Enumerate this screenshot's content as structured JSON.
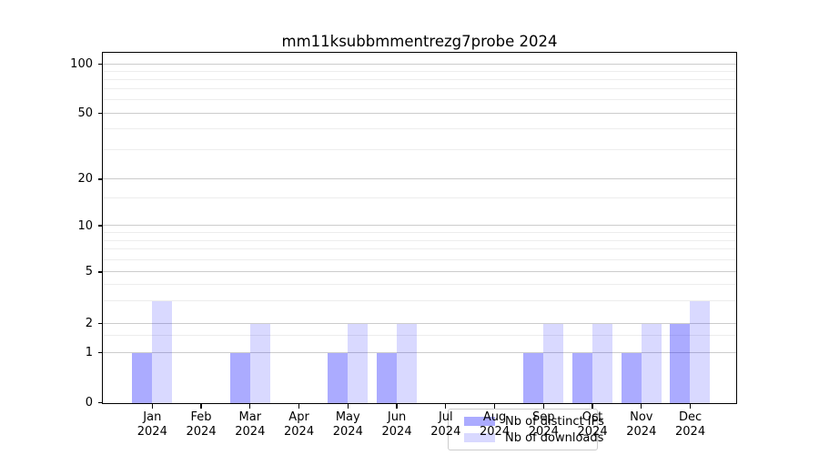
{
  "title": "mm11ksubbmmentrezg7probe 2024",
  "chart_data": {
    "type": "bar",
    "title": "mm11ksubbmmentrezg7probe 2024",
    "categories": [
      "Jan",
      "Feb",
      "Mar",
      "Apr",
      "May",
      "Jun",
      "Jul",
      "Aug",
      "Sep",
      "Oct",
      "Nov",
      "Dec"
    ],
    "category_year": "2024",
    "series": [
      {
        "name": "Nb of distinct IPs",
        "color": "rgba(0,0,255,0.33)",
        "values": [
          1,
          0,
          1,
          0,
          1,
          1,
          0,
          0,
          1,
          1,
          1,
          2
        ]
      },
      {
        "name": "Nb of downloads",
        "color": "rgba(0,0,255,0.15)",
        "values": [
          3,
          0,
          2,
          0,
          2,
          2,
          0,
          0,
          2,
          2,
          2,
          3
        ]
      }
    ],
    "xlabel": "",
    "ylabel": "",
    "yaxis": {
      "scale": "log-like with zero",
      "major_ticks": [
        0,
        1,
        2,
        5,
        10,
        20,
        50,
        100
      ],
      "minor_gridlines": [
        1.5,
        3,
        4,
        6,
        7,
        8,
        9,
        15,
        30,
        40,
        60,
        70,
        80,
        90
      ],
      "ylim": [
        0,
        130
      ]
    },
    "grid": true,
    "legend": {
      "position": "lower center",
      "entries": [
        "Nb of distinct IPs",
        "Nb of downloads"
      ]
    },
    "colors": {
      "bar_distinct_ips": "rgba(0,0,255,0.33)",
      "bar_downloads": "rgba(0,0,255,0.15)",
      "grid_major": "#cccccc",
      "grid_minor": "#ededed",
      "spine": "#000000",
      "legend_border": "#cccccc"
    }
  }
}
